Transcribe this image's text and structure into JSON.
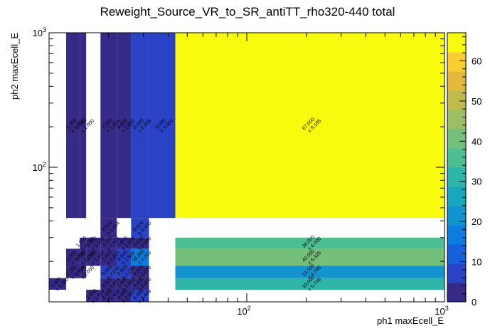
{
  "chart_data": {
    "type": "heatmap",
    "title": "Reweight_Source_VR_to_SR_antiTT_rho320-440 total",
    "xlabel": "ph1 maxEcell_E",
    "ylabel": "ph2 maxEcell_E",
    "x_scale": "log",
    "y_scale": "log",
    "xlim": [
      10,
      1000
    ],
    "ylim": [
      10,
      1000
    ],
    "x_ticks": [
      {
        "value": 100,
        "label": "10",
        "exp": "2"
      },
      {
        "value": 1000,
        "label": "10",
        "exp": "3"
      }
    ],
    "y_ticks": [
      {
        "value": 100,
        "label": "10",
        "exp": "2"
      },
      {
        "value": 1000,
        "label": "10",
        "exp": "3"
      }
    ],
    "x_edges": [
      10,
      12.2,
      14.3,
      15.4,
      18.2,
      22.0,
      26.0,
      32.0,
      43.5,
      1000
    ],
    "y_edges": [
      10,
      12.3,
      15.0,
      18.5,
      24.8,
      30.0,
      42.0,
      1000
    ],
    "colorbar": {
      "min": 0,
      "max": 67,
      "ticks": [
        0,
        10,
        20,
        30,
        40,
        50,
        60
      ],
      "colors": [
        "#352a87",
        "#2a42c6",
        "#1760dd",
        "#0e7cdf",
        "#1294d1",
        "#18a8bd",
        "#2eb5a8",
        "#4dbd92",
        "#74c07a",
        "#9cbf63",
        "#c1bb4f",
        "#e2b93d",
        "#fbcd2e",
        "#f9fb0e"
      ]
    },
    "cells": [
      {
        "ix": 0,
        "iy": 1,
        "value": 1.0,
        "label": "1.000",
        "err": "± 1.000"
      },
      {
        "ix": 1,
        "iy": 2,
        "value": 2.0,
        "label": "2.000",
        "err": "± 1.414"
      },
      {
        "ix": 1,
        "iy": 3,
        "value": 1.0,
        "label": "1.000",
        "err": "± 1.000"
      },
      {
        "ix": 1,
        "iy": 6,
        "value": 1.0,
        "label": "1.000",
        "err": "± 1.000"
      },
      {
        "ix": 2,
        "iy": 2,
        "value": 1.0,
        "label": "1.000",
        "err": "± 1.000"
      },
      {
        "ix": 2,
        "iy": 3,
        "value": 1.0,
        "label": "1.000",
        "err": "± 1.000"
      },
      {
        "ix": 2,
        "iy": 4,
        "value": 1.0,
        "label": "1.000",
        "err": "± 1.000"
      },
      {
        "ix": 2,
        "iy": 6,
        "value": 1.0,
        "label": "1.000",
        "err": "± 1.000"
      },
      {
        "ix": 3,
        "iy": 0,
        "value": 2.0,
        "label": "2.000",
        "err": "± 1.414"
      },
      {
        "ix": 3,
        "iy": 3,
        "value": 2.0,
        "label": "2.000",
        "err": "± 1.414"
      },
      {
        "ix": 3,
        "iy": 4,
        "value": 1.0,
        "label": "1.000",
        "err": "± 1.000"
      },
      {
        "ix": 4,
        "iy": 0,
        "value": 2.0,
        "label": "2.000",
        "err": "± 1.414"
      },
      {
        "ix": 4,
        "iy": 1,
        "value": 2.0,
        "label": "2.000",
        "err": "± 1.414"
      },
      {
        "ix": 4,
        "iy": 2,
        "value": 5.0,
        "label": "5.000",
        "err": "± 2.236"
      },
      {
        "ix": 4,
        "iy": 3,
        "value": 2.0,
        "label": "2.000",
        "err": "± 1.414"
      },
      {
        "ix": 4,
        "iy": 4,
        "value": 2.0,
        "label": "2.000",
        "err": "± 1.414"
      },
      {
        "ix": 4,
        "iy": 5,
        "value": 2.0,
        "label": "2.000",
        "err": "± 1.414"
      },
      {
        "ix": 4,
        "iy": 6,
        "value": 2.0,
        "label": "2.000",
        "err": "± 1.414"
      },
      {
        "ix": 5,
        "iy": 0,
        "value": 4.0,
        "label": "4.000",
        "err": "± 2.000"
      },
      {
        "ix": 5,
        "iy": 1,
        "value": 1.0,
        "label": "1.000",
        "err": "± 1.000"
      },
      {
        "ix": 5,
        "iy": 2,
        "value": 5.0,
        "label": "5.000",
        "err": "± 2.236"
      },
      {
        "ix": 5,
        "iy": 3,
        "value": 8.0,
        "label": "8.000",
        "err": "± 2.828"
      },
      {
        "ix": 5,
        "iy": 4,
        "value": 1.0,
        "label": "1.000",
        "err": "± 1.000"
      },
      {
        "ix": 5,
        "iy": 6,
        "value": 4.0,
        "label": "4.000",
        "err": "± 2.000"
      },
      {
        "ix": 6,
        "iy": 0,
        "value": 6.0,
        "label": "6.000",
        "err": "± 2.449"
      },
      {
        "ix": 6,
        "iy": 1,
        "value": 4.0,
        "label": "4.000",
        "err": "± 2.000"
      },
      {
        "ix": 6,
        "iy": 2,
        "value": 4.0,
        "label": "4.000",
        "err": "± 2.000"
      },
      {
        "ix": 6,
        "iy": 3,
        "value": 16.0,
        "label": "16.000",
        "err": "± 4.000"
      },
      {
        "ix": 6,
        "iy": 4,
        "value": 4.0,
        "label": "4.000",
        "err": "± 2.000"
      },
      {
        "ix": 6,
        "iy": 5,
        "value": 9.0,
        "label": "9.000",
        "err": "± 3.000"
      },
      {
        "ix": 6,
        "iy": 6,
        "value": 5.0,
        "label": "5.000",
        "err": "± 2.236"
      },
      {
        "ix": 7,
        "iy": 6,
        "value": 9.0,
        "label": "9.000",
        "err": "± 3.000"
      },
      {
        "ix": 8,
        "iy": 1,
        "value": 33.0,
        "label": "33.000",
        "err": "± 5.745"
      },
      {
        "ix": 8,
        "iy": 2,
        "value": 23.0,
        "label": "23.000",
        "err": "± 4.796"
      },
      {
        "ix": 8,
        "iy": 3,
        "value": 40.0,
        "label": "40.000",
        "err": "± 6.325"
      },
      {
        "ix": 8,
        "iy": 4,
        "value": 36.0,
        "label": "36.000",
        "err": "± 6.000"
      },
      {
        "ix": 8,
        "iy": 6,
        "value": 67.0,
        "label": "67.000",
        "err": "± 8.185"
      }
    ]
  }
}
